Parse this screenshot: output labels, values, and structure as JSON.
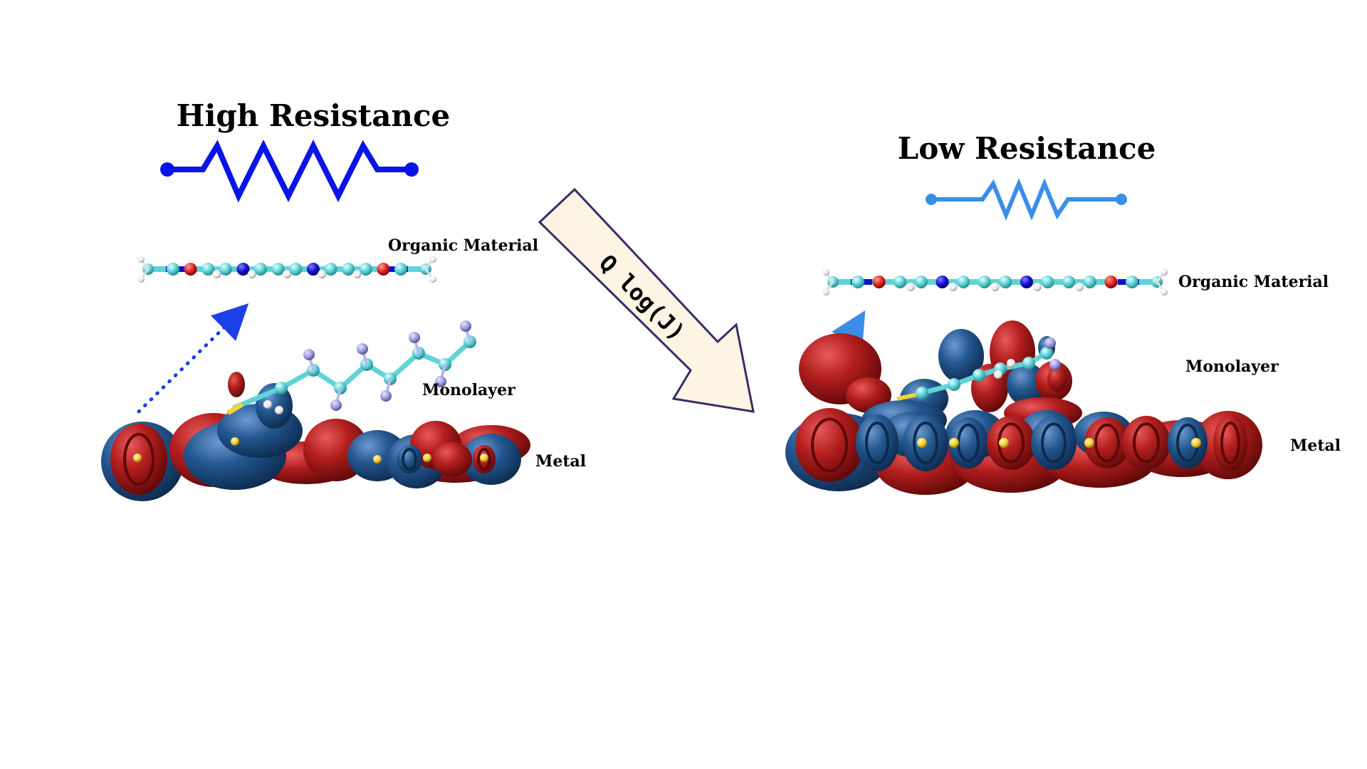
{
  "panels": {
    "left": {
      "title": "High Resistance",
      "organic_label": "Organic Material",
      "monolayer_label": "Monolayer",
      "metal_label": "Metal",
      "resistor_color": "#0a14e6",
      "arrow_color": "#1c3fe8"
    },
    "right": {
      "title": "Low Resistance",
      "organic_label": "Organic Material",
      "monolayer_label": "Monolayer",
      "metal_label": "Metal",
      "resistor_color": "#3a8ee8",
      "arrow_color": "#3a8ee8"
    }
  },
  "transition_arrow": {
    "label": "Q log(J)",
    "fill": "#fdf4e3",
    "stroke": "#3b2a66"
  },
  "colors": {
    "orbital_positive": "#a31515",
    "orbital_negative": "#1f4f88",
    "carbon": "#5fd4d8",
    "nitrogen": "#1010d0",
    "oxygen": "#e02020",
    "hydrogen": "#f2f2f2",
    "fluorine": "#9a9ae0",
    "sulfur": "#f3d23a"
  }
}
